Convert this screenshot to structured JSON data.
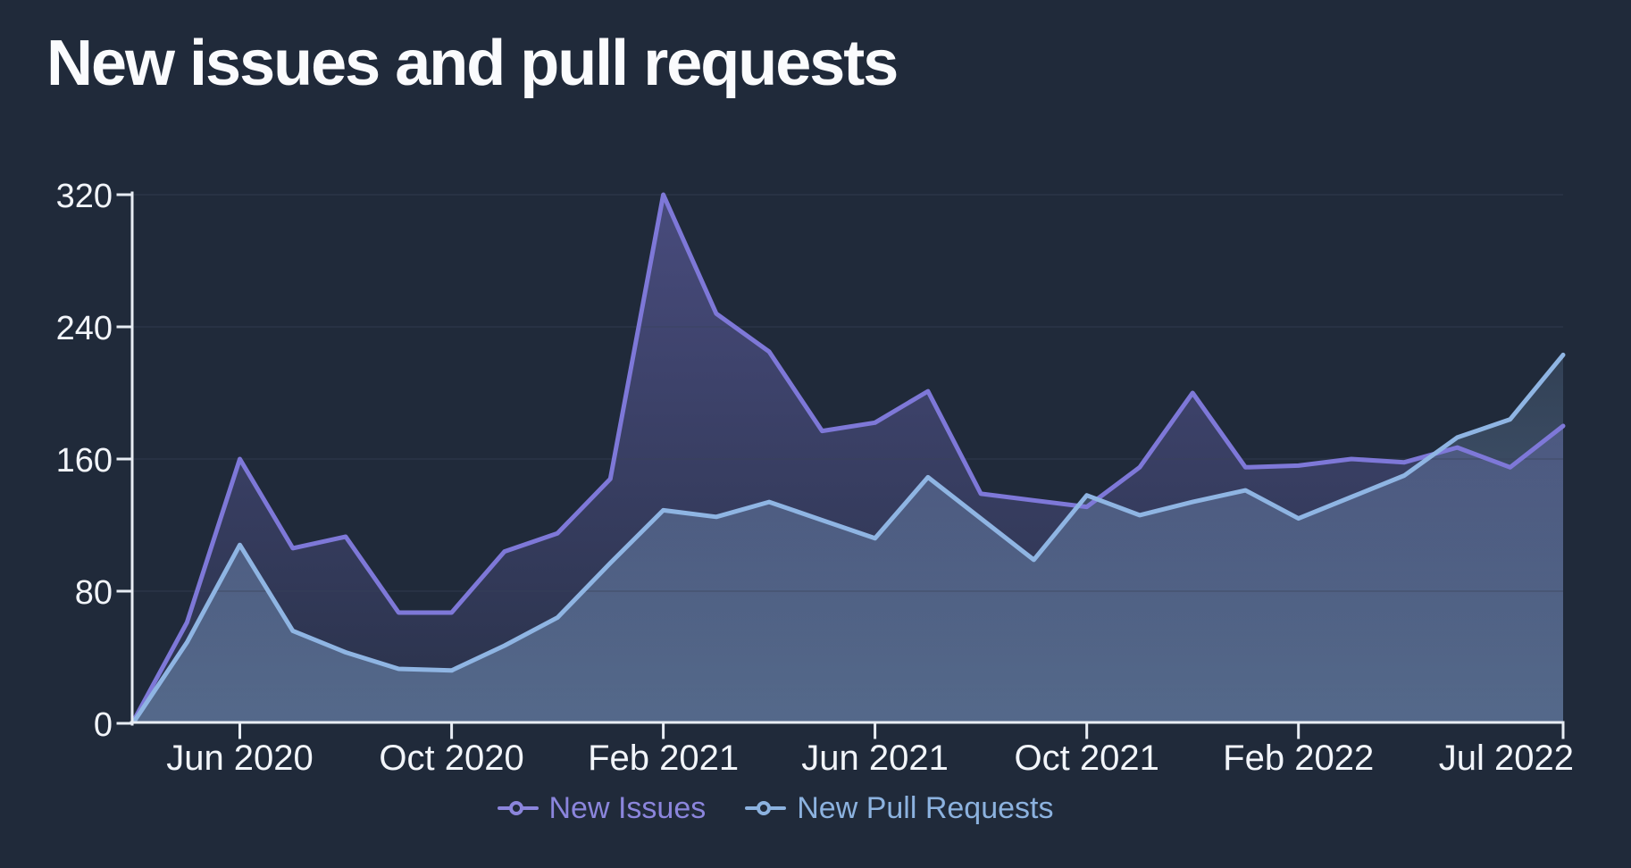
{
  "title": "New issues and pull requests",
  "colors": {
    "background": "#202A3A",
    "axis": "#E8EDF4",
    "tick_label": "#F2F5FA",
    "gridline": "#39435A",
    "title_text": "#FAFBFD"
  },
  "chart_data": {
    "type": "area",
    "title": "New issues and pull requests",
    "x": [
      "Apr 2020",
      "May 2020",
      "Jun 2020",
      "Jul 2020",
      "Aug 2020",
      "Sep 2020",
      "Oct 2020",
      "Nov 2020",
      "Dec 2020",
      "Jan 2021",
      "Feb 2021",
      "Mar 2021",
      "Apr 2021",
      "May 2021",
      "Jun 2021",
      "Jul 2021",
      "Aug 2021",
      "Sep 2021",
      "Oct 2021",
      "Nov 2021",
      "Dec 2021",
      "Jan 2022",
      "Feb 2022",
      "Mar 2022",
      "Apr 2022",
      "May 2022",
      "Jun 2022",
      "Jul 2022"
    ],
    "series": [
      {
        "name": "New Issues",
        "color": "#7E78D8",
        "legend_color": "#8B85DC",
        "fill_top": "rgba(127,121,216,0.42)",
        "fill_bottom": "rgba(127,121,216,0.10)",
        "values": [
          2,
          61,
          160,
          106,
          113,
          67,
          67,
          104,
          115,
          148,
          320,
          248,
          225,
          177,
          182,
          201,
          139,
          135,
          131,
          155,
          200,
          155,
          156,
          160,
          158,
          167,
          155,
          180
        ]
      },
      {
        "name": "New Pull Requests",
        "color": "#8FB5E3",
        "legend_color": "#8CB2DF",
        "fill_top": "rgba(143,181,227,0.16)",
        "fill_bottom": "rgba(143,181,227,0.42)",
        "values": [
          1,
          49,
          108,
          56,
          43,
          33,
          32,
          47,
          64,
          97,
          129,
          125,
          134,
          123,
          112,
          149,
          124,
          99,
          138,
          126,
          134,
          141,
          124,
          137,
          150,
          173,
          184,
          223
        ]
      }
    ],
    "y_ticks": [
      0,
      80,
      160,
      240,
      320
    ],
    "ylim": [
      0,
      320
    ],
    "x_tick_labels": [
      {
        "index": 2,
        "label": "Jun 2020"
      },
      {
        "index": 6,
        "label": "Oct 2020"
      },
      {
        "index": 10,
        "label": "Feb 2021"
      },
      {
        "index": 14,
        "label": "Jun 2021"
      },
      {
        "index": 18,
        "label": "Oct 2021"
      },
      {
        "index": 22,
        "label": "Feb 2022"
      },
      {
        "index": 27,
        "label": "Jul 2022"
      }
    ],
    "grid": true,
    "legend_position": "bottom"
  }
}
